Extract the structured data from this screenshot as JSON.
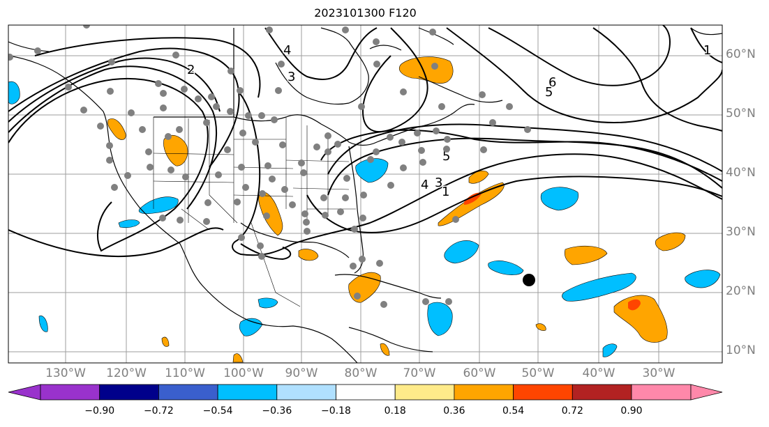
{
  "title": "2023101300 F120",
  "lat_labels": [
    "60°N",
    "50°N",
    "40°N",
    "30°N",
    "20°N",
    "10°N"
  ],
  "lon_labels": [
    "130°W",
    "120°W",
    "110°W",
    "100°W",
    "90°W",
    "80°W",
    "70°W",
    "60°W",
    "50°W",
    "40°W",
    "30°W"
  ],
  "colorbar": {
    "ticks": [
      "−0.90",
      "−0.72",
      "−0.54",
      "−0.36",
      "−0.18",
      "0.18",
      "0.36",
      "0.54",
      "0.72",
      "0.90"
    ],
    "colors": [
      "#9932cc",
      "#00008b",
      "#3a5fcd",
      "#00bfff",
      "#b0e0ff",
      "#ffffff",
      "#ffeb8a",
      "#ffa500",
      "#ff4500",
      "#b22222",
      "#ff88aa"
    ]
  },
  "contour_labels": [
    "1",
    "2",
    "3",
    "4",
    "5",
    "6"
  ],
  "colors": {
    "positive": "#ffa500",
    "positive_strong": "#ff4500",
    "negative": "#00bfff",
    "station": "#808080",
    "contour": "#000000"
  }
}
